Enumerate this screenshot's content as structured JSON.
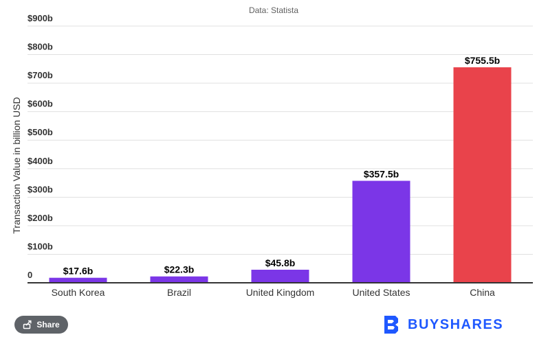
{
  "source_note": "Data: Statista",
  "chart_data": {
    "type": "bar",
    "categories": [
      "South Korea",
      "Brazil",
      "United Kingdom",
      "United States",
      "China"
    ],
    "values": [
      17.6,
      22.3,
      45.8,
      357.5,
      755.5
    ],
    "value_labels": [
      "$17.6b",
      "$22.3b",
      "$45.8b",
      "$357.5b",
      "$755.5b"
    ],
    "colors": [
      "#7b36e7",
      "#7b36e7",
      "#7b36e7",
      "#7b36e7",
      "#e9434b"
    ],
    "ylabel": "Transaction Value in billion USD",
    "ylim": [
      0,
      900
    ],
    "yticks": [
      0,
      100,
      200,
      300,
      400,
      500,
      600,
      700,
      800,
      900
    ],
    "ytick_labels": [
      "0",
      "$100b",
      "$200b",
      "$300b",
      "$400b",
      "$500b",
      "$600b",
      "$700b",
      "$800b",
      "$900b"
    ],
    "grid": true
  },
  "share": {
    "label": "Share",
    "icon": "share-icon"
  },
  "brand": {
    "name": "BUYSHARES",
    "icon": "buyshares-logo-icon",
    "color": "#1f58ff"
  }
}
